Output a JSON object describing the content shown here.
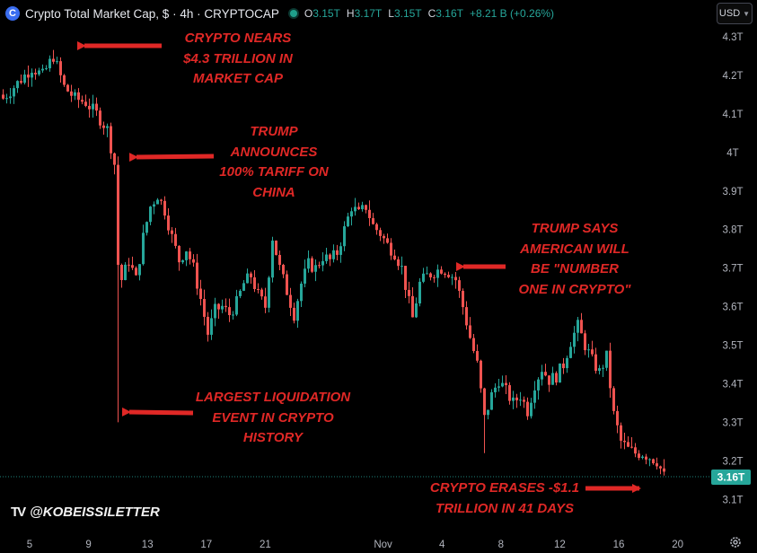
{
  "header": {
    "logo_letter": "C",
    "title": "Crypto Total Market Cap, $ · 4h · CRYPTOCAP",
    "ohlc": [
      {
        "key": "O",
        "value": "3.15T"
      },
      {
        "key": "H",
        "value": "3.17T"
      },
      {
        "key": "L",
        "value": "3.15T"
      },
      {
        "key": "C",
        "value": "3.16T"
      }
    ],
    "change": "+8.21 B (+0.26%)",
    "currency": "USD"
  },
  "watermark": "@KOBEISSILETTER",
  "colors": {
    "up": "#26a69a",
    "down": "#ef5350",
    "annotation": "#e02826",
    "price_tag": "#26a69a"
  },
  "annotations": [
    {
      "id": "peak",
      "text": "CRYPTO NEARS\n$4.3 TRILLION IN\nMARKET CAP"
    },
    {
      "id": "tariff",
      "text": "TRUMP\nANNOUNCES\n100% TARIFF ON\nCHINA"
    },
    {
      "id": "number-one",
      "text": "TRUMP SAYS\nAMERICAN WILL\nBE \"NUMBER\nONE IN CRYPTO\""
    },
    {
      "id": "liquidation",
      "text": "LARGEST LIQUIDATION\nEVENT IN CRYPTO\nHISTORY"
    },
    {
      "id": "erases",
      "text": "CRYPTO ERASES -$1.1\nTRILLION IN 41 DAYS"
    }
  ],
  "chart_data": {
    "type": "candlestick",
    "y_unit": "USD trillion",
    "ylim": [
      3.05,
      4.33
    ],
    "y_ticks": [
      "4.3T",
      "4.2T",
      "4.1T",
      "4T",
      "3.9T",
      "3.8T",
      "3.7T",
      "3.6T",
      "3.5T",
      "3.4T",
      "3.3T",
      "3.2T",
      "3.1T"
    ],
    "x_ticks": [
      "5",
      "9",
      "13",
      "17",
      "21",
      "",
      "Nov",
      "4",
      "8",
      "12",
      "16",
      "20"
    ],
    "current_price": 3.16,
    "current_price_label": "3.16T",
    "close_path_approx": [
      [
        0,
        4.14
      ],
      [
        4,
        4.18
      ],
      [
        8,
        4.22
      ],
      [
        11,
        4.2
      ],
      [
        14,
        4.25
      ],
      [
        17,
        4.17
      ],
      [
        20,
        4.14
      ],
      [
        23,
        4.13
      ],
      [
        26,
        4.1
      ],
      [
        29,
        4.06
      ],
      [
        31,
        3.97
      ],
      [
        32,
        3.71
      ],
      [
        33,
        3.67
      ],
      [
        35,
        3.72
      ],
      [
        37,
        3.67
      ],
      [
        39,
        3.78
      ],
      [
        41,
        3.86
      ],
      [
        43,
        3.89
      ],
      [
        45,
        3.85
      ],
      [
        47,
        3.78
      ],
      [
        49,
        3.72
      ],
      [
        51,
        3.75
      ],
      [
        53,
        3.7
      ],
      [
        55,
        3.62
      ],
      [
        57,
        3.53
      ],
      [
        59,
        3.59
      ],
      [
        61,
        3.6
      ],
      [
        63,
        3.58
      ],
      [
        65,
        3.61
      ],
      [
        67,
        3.66
      ],
      [
        69,
        3.68
      ],
      [
        71,
        3.63
      ],
      [
        73,
        3.6
      ],
      [
        75,
        3.78
      ],
      [
        77,
        3.7
      ],
      [
        79,
        3.64
      ],
      [
        81,
        3.58
      ],
      [
        83,
        3.66
      ],
      [
        85,
        3.71
      ],
      [
        87,
        3.7
      ],
      [
        89,
        3.73
      ],
      [
        91,
        3.72
      ],
      [
        93,
        3.74
      ],
      [
        95,
        3.8
      ],
      [
        97,
        3.86
      ],
      [
        99,
        3.84
      ],
      [
        101,
        3.86
      ],
      [
        103,
        3.81
      ],
      [
        105,
        3.79
      ],
      [
        107,
        3.76
      ],
      [
        109,
        3.74
      ],
      [
        111,
        3.7
      ],
      [
        113,
        3.61
      ],
      [
        114,
        3.57
      ],
      [
        116,
        3.66
      ],
      [
        118,
        3.68
      ],
      [
        120,
        3.69
      ],
      [
        122,
        3.7
      ],
      [
        124,
        3.69
      ],
      [
        126,
        3.67
      ],
      [
        128,
        3.6
      ],
      [
        130,
        3.52
      ],
      [
        132,
        3.45
      ],
      [
        134,
        3.31
      ],
      [
        136,
        3.37
      ],
      [
        138,
        3.41
      ],
      [
        140,
        3.38
      ],
      [
        142,
        3.35
      ],
      [
        144,
        3.37
      ],
      [
        146,
        3.33
      ],
      [
        148,
        3.4
      ],
      [
        150,
        3.44
      ],
      [
        152,
        3.41
      ],
      [
        154,
        3.42
      ],
      [
        156,
        3.45
      ],
      [
        158,
        3.51
      ],
      [
        160,
        3.55
      ],
      [
        162,
        3.5
      ],
      [
        164,
        3.46
      ],
      [
        166,
        3.43
      ],
      [
        168,
        3.47
      ],
      [
        170,
        3.32
      ],
      [
        172,
        3.25
      ],
      [
        174,
        3.23
      ],
      [
        176,
        3.22
      ],
      [
        178,
        3.22
      ],
      [
        180,
        3.21
      ],
      [
        182,
        3.2
      ],
      [
        184,
        3.16
      ]
    ]
  }
}
